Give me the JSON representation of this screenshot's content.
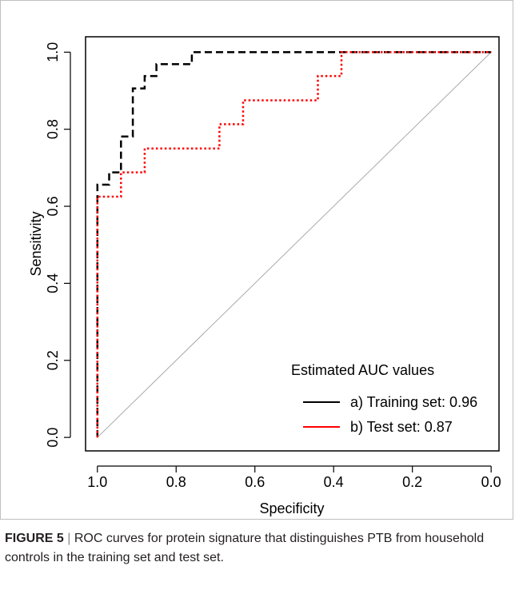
{
  "figure": {
    "label": "FIGURE 5",
    "separator": "|",
    "caption": "ROC curves for protein signature that distinguishes PTB from household controls in the training set and test set."
  },
  "chart_data": {
    "type": "line",
    "title": "",
    "xlabel": "Specificity",
    "ylabel": "Sensitivity",
    "xlim": [
      1.03,
      -0.02
    ],
    "ylim": [
      -0.035,
      1.04
    ],
    "x_reversed": true,
    "grid": false,
    "x_ticks": [
      1.0,
      0.8,
      0.6,
      0.4,
      0.2,
      0.0
    ],
    "x_tick_labels": [
      "1.0",
      "0.8",
      "0.6",
      "0.4",
      "0.2",
      "0.0"
    ],
    "y_ticks": [
      0.0,
      0.2,
      0.4,
      0.6,
      0.8,
      1.0
    ],
    "y_tick_labels": [
      "0.0",
      "0.2",
      "0.4",
      "0.6",
      "0.8",
      "1.0"
    ],
    "reference_line": {
      "from": [
        1.0,
        0.0
      ],
      "to": [
        0.0,
        1.0
      ],
      "color": "#aaaaaa"
    },
    "legend": {
      "title": "Estimated AUC values",
      "position": "bottom-right",
      "entries": [
        "a) Training set: 0.96",
        "b) Test set: 0.87"
      ]
    },
    "series": [
      {
        "name": "a) Training set: 0.96",
        "color": "#000000",
        "style": "dashed",
        "x": [
          1.0,
          1.0,
          0.97,
          0.97,
          0.94,
          0.94,
          0.91,
          0.91,
          0.88,
          0.88,
          0.85,
          0.85,
          0.76,
          0.76,
          0.0
        ],
        "y": [
          0.0,
          0.656,
          0.656,
          0.688,
          0.688,
          0.781,
          0.781,
          0.906,
          0.906,
          0.938,
          0.938,
          0.969,
          0.969,
          1.0,
          1.0
        ]
      },
      {
        "name": "b) Test set: 0.87",
        "color": "#ff0000",
        "style": "dotted",
        "x": [
          1.0,
          1.0,
          0.94,
          0.94,
          0.88,
          0.88,
          0.69,
          0.69,
          0.63,
          0.63,
          0.44,
          0.44,
          0.38,
          0.38,
          0.0
        ],
        "y": [
          0.0,
          0.625,
          0.625,
          0.688,
          0.688,
          0.75,
          0.75,
          0.813,
          0.813,
          0.875,
          0.875,
          0.938,
          0.938,
          1.0,
          1.0
        ]
      }
    ]
  }
}
